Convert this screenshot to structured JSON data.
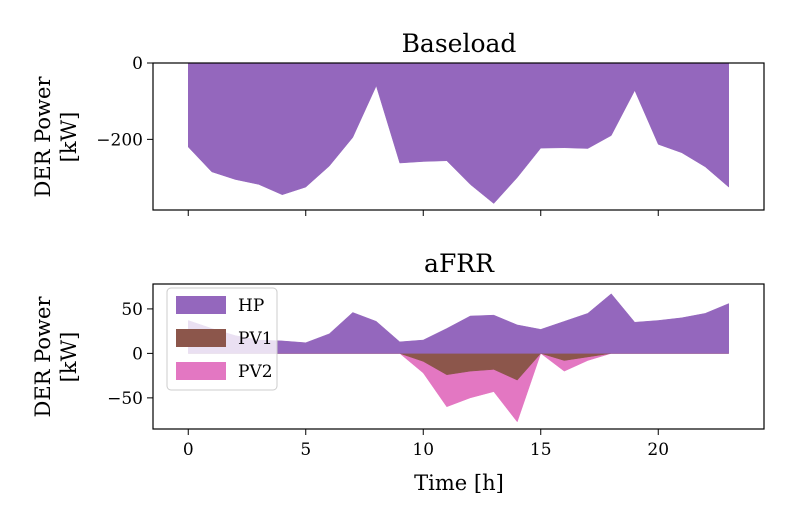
{
  "chart_data": [
    {
      "type": "area",
      "title": "Baseload",
      "ylabel": [
        "DER Power",
        "[kW]"
      ],
      "xlabel": "",
      "xlim": [
        -1.5,
        24.5
      ],
      "ylim": [
        -385,
        0
      ],
      "yticks": [
        0,
        -200
      ],
      "ytick_labels": [
        "0",
        "−200"
      ],
      "xticks": [
        0,
        5,
        10,
        15,
        20
      ],
      "x": [
        0,
        1,
        2,
        3,
        4,
        5,
        6,
        7,
        8,
        9,
        10,
        11,
        12,
        13,
        14,
        15,
        16,
        17,
        18,
        19,
        20,
        21,
        22,
        23
      ],
      "series": [
        {
          "name": "HP",
          "color": "#9467bd",
          "values": [
            -220,
            -285,
            -305,
            -318,
            -345,
            -325,
            -270,
            -195,
            -60,
            -262,
            -258,
            -256,
            -318,
            -368,
            -300,
            -223,
            -222,
            -224,
            -190,
            -72,
            -213,
            -235,
            -272,
            -325
          ]
        }
      ]
    },
    {
      "type": "area",
      "title": "aFRR",
      "ylabel": [
        "DER Power",
        "[kW]"
      ],
      "xlabel": "Time [h]",
      "xlim": [
        -1.5,
        24.5
      ],
      "ylim": [
        -85,
        78
      ],
      "yticks": [
        50,
        0,
        -50
      ],
      "ytick_labels": [
        "50",
        "0",
        "−50"
      ],
      "xticks": [
        0,
        5,
        10,
        15,
        20
      ],
      "xtick_labels": [
        "0",
        "5",
        "10",
        "15",
        "20"
      ],
      "x": [
        0,
        1,
        2,
        3,
        4,
        5,
        6,
        7,
        8,
        9,
        10,
        11,
        12,
        13,
        14,
        15,
        16,
        17,
        18,
        19,
        20,
        21,
        22,
        23
      ],
      "legend": {
        "position": "upper-left",
        "entries": [
          "HP",
          "PV1",
          "PV2"
        ]
      },
      "series": [
        {
          "name": "PV2",
          "color": "#e377c2",
          "values": [
            0,
            0,
            0,
            0,
            0,
            0,
            0,
            0,
            0,
            0,
            -22,
            -60,
            -50,
            -43,
            -77,
            0,
            -20,
            -8,
            0,
            0,
            0,
            0,
            0,
            0
          ]
        },
        {
          "name": "PV1",
          "color": "#8c564b",
          "values": [
            0,
            0,
            0,
            0,
            0,
            0,
            0,
            0,
            0,
            0,
            -9,
            -24,
            -20,
            -18,
            -30,
            0,
            -8,
            -4,
            0,
            0,
            0,
            0,
            0,
            0
          ]
        },
        {
          "name": "HP",
          "color": "#9467bd",
          "values": [
            37,
            28,
            20,
            15,
            14,
            12,
            22,
            46,
            36,
            13,
            15,
            28,
            42,
            43,
            32,
            27,
            36,
            45,
            67,
            35,
            37,
            40,
            45,
            56
          ]
        }
      ]
    }
  ]
}
